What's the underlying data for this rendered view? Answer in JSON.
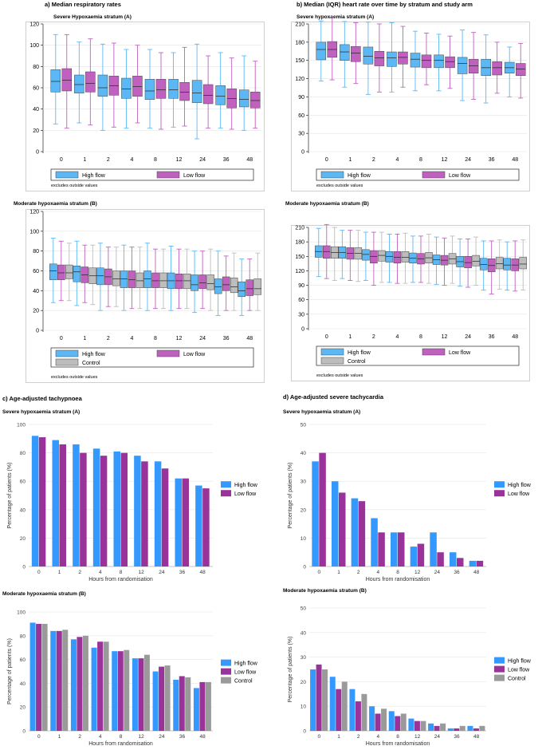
{
  "labels": {
    "a": "a)  Median respiratory rates",
    "b": "b)  Median (IQR) heart rate over time by stratum and study arm",
    "c": "c)  Age-adjusted tachypnoea",
    "d": "d)  Age-adjusted severe tachycardia",
    "severe_a_box": "Severe Hypoxaemia stratum  (A)",
    "severe_b_box": "Severe hypoxaemia stratum (A)",
    "moderate": "Moderate hypoxaemia stratum (B)",
    "severe_bar": "Severe hypoxaemia stratum (A)",
    "excludes": "excludes outside values",
    "ylabel_pct": "Percentage of patients (%)",
    "xlabel_hours": "Hours from randomisation"
  },
  "colors": {
    "high": "#5bb8f5",
    "low": "#c061c0",
    "control": "#bdbdbd",
    "highBar": "#3399ff",
    "lowBar": "#993399",
    "controlBar": "#9a9a9a"
  },
  "chart_data": [
    {
      "id": "a-severe",
      "type": "box",
      "title": "Severe Hypoxaemia stratum  (A)",
      "categories": [
        "0",
        "1",
        "2",
        "4",
        "8",
        "12",
        "24",
        "36",
        "48"
      ],
      "ylim": [
        0,
        120
      ],
      "yticks": [
        0,
        20,
        40,
        60,
        80,
        100,
        120
      ],
      "legend": [
        "High flow",
        "Low flow"
      ],
      "note": "excludes outside values",
      "series": [
        {
          "name": "High flow",
          "stats": [
            [
              26,
              56,
              66,
              77,
              110
            ],
            [
              27,
              55,
              63,
              72,
              103
            ],
            [
              20,
              52,
              60,
              72,
              101
            ],
            [
              22,
              50,
              59,
              69,
              96
            ],
            [
              22,
              49,
              57,
              68,
              96
            ],
            [
              23,
              50,
              58,
              68,
              93
            ],
            [
              12,
              46,
              55,
              67,
              101
            ],
            [
              22,
              44,
              52,
              62,
              93
            ],
            [
              20,
              42,
              49,
              58,
              90
            ]
          ]
        },
        {
          "name": "Low flow",
          "stats": [
            [
              22,
              57,
              67,
              78,
              110
            ],
            [
              25,
              56,
              64,
              75,
              106
            ],
            [
              23,
              53,
              62,
              71,
              102
            ],
            [
              27,
              52,
              61,
              71,
              100
            ],
            [
              21,
              50,
              58,
              68,
              93
            ],
            [
              24,
              48,
              56,
              65,
              98
            ],
            [
              22,
              45,
              53,
              63,
              90
            ],
            [
              21,
              41,
              50,
              59,
              88
            ],
            [
              22,
              41,
              48,
              56,
              85
            ]
          ]
        }
      ]
    },
    {
      "id": "a-moderate",
      "type": "box",
      "title": "Moderate hypoxaemia stratum (B)",
      "categories": [
        "0",
        "1",
        "2",
        "4",
        "8",
        "12",
        "24",
        "36",
        "48"
      ],
      "ylim": [
        0,
        120
      ],
      "yticks": [
        0,
        20,
        40,
        60,
        80,
        100,
        120
      ],
      "legend": [
        "High flow",
        "Low flow",
        "Control"
      ],
      "note": "excludes outside values",
      "series": [
        {
          "name": "High flow",
          "stats": [
            [
              28,
              51,
              60,
              67,
              93
            ],
            [
              25,
              49,
              59,
              65,
              90
            ],
            [
              20,
              46,
              55,
              63,
              88
            ],
            [
              20,
              43,
              52,
              60,
              86
            ],
            [
              20,
              43,
              52,
              60,
              88
            ],
            [
              20,
              42,
              50,
              58,
              85
            ],
            [
              18,
              40,
              46,
              56,
              80
            ],
            [
              15,
              37,
              44,
              52,
              80
            ],
            [
              15,
              34,
              40,
              49,
              72
            ]
          ]
        },
        {
          "name": "Low flow",
          "stats": [
            [
              30,
              51,
              58,
              66,
              90
            ],
            [
              28,
              48,
              56,
              64,
              86
            ],
            [
              24,
              46,
              54,
              62,
              84
            ],
            [
              22,
              43,
              51,
              60,
              84
            ],
            [
              22,
              43,
              50,
              58,
              82
            ],
            [
              22,
              42,
              50,
              57,
              82
            ],
            [
              22,
              42,
              48,
              56,
              80
            ],
            [
              20,
              40,
              46,
              54,
              75
            ],
            [
              20,
              35,
              42,
              51,
              72
            ]
          ]
        },
        {
          "name": "Control",
          "stats": [
            [
              30,
              52,
              58,
              66,
              88
            ],
            [
              26,
              47,
              55,
              63,
              86
            ],
            [
              24,
              45,
              52,
              60,
              84
            ],
            [
              22,
              43,
              50,
              58,
              84
            ],
            [
              22,
              43,
              50,
              58,
              82
            ],
            [
              22,
              42,
              50,
              57,
              82
            ],
            [
              20,
              41,
              47,
              56,
              82
            ],
            [
              20,
              38,
              44,
              53,
              78
            ],
            [
              20,
              36,
              42,
              52,
              78
            ]
          ]
        }
      ]
    },
    {
      "id": "b-severe",
      "type": "box",
      "title": "Severe hypoxaemia stratum (A)",
      "categories": [
        "0",
        "1",
        "2",
        "4",
        "8",
        "12",
        "24",
        "36",
        "48"
      ],
      "ylim": [
        0,
        210
      ],
      "yticks": [
        0,
        30,
        60,
        90,
        120,
        150,
        180,
        210
      ],
      "legend": [
        "High flow",
        "Low flow"
      ],
      "note": "excludes outside values",
      "series": [
        {
          "name": "High flow",
          "stats": [
            [
              116,
              151,
              168,
              180,
              215
            ],
            [
              106,
              150,
              164,
              176,
              214
            ],
            [
              94,
              144,
              157,
              172,
              213
            ],
            [
              98,
              140,
              154,
              164,
              212
            ],
            [
              100,
              139,
              152,
              162,
              198
            ],
            [
              100,
              138,
              150,
              159,
              193
            ],
            [
              84,
              128,
              145,
              155,
              200
            ],
            [
              80,
              125,
              138,
              152,
              192
            ],
            [
              90,
              129,
              138,
              147,
              172
            ]
          ]
        },
        {
          "name": "Low flow",
          "stats": [
            [
              118,
              155,
              168,
              181,
              221
            ],
            [
              112,
              148,
              162,
              173,
              212
            ],
            [
              98,
              141,
              154,
              165,
              210
            ],
            [
              106,
              144,
              155,
              164,
              206
            ],
            [
              110,
              138,
              150,
              159,
              195
            ],
            [
              104,
              138,
              148,
              156,
              190
            ],
            [
              86,
              129,
              141,
              152,
              196
            ],
            [
              96,
              126,
              138,
              148,
              180
            ],
            [
              88,
              125,
              136,
              145,
              178
            ]
          ]
        }
      ]
    },
    {
      "id": "b-moderate",
      "type": "box",
      "title": "Moderate hypoxaemia stratum (B)",
      "categories": [
        "0",
        "1",
        "2",
        "4",
        "8",
        "12",
        "24",
        "36",
        "48"
      ],
      "ylim": [
        0,
        210
      ],
      "yticks": [
        0,
        30,
        60,
        90,
        120,
        150,
        180,
        210
      ],
      "legend": [
        "High flow",
        "Low flow",
        "Control"
      ],
      "note": "excludes outside values",
      "series": [
        {
          "name": "High flow",
          "stats": [
            [
              108,
              148,
              160,
              172,
              208
            ],
            [
              104,
              146,
              158,
              170,
              204
            ],
            [
              100,
              142,
              154,
              164,
              200
            ],
            [
              96,
              138,
              150,
              160,
              196
            ],
            [
              96,
              136,
              146,
              157,
              192
            ],
            [
              92,
              133,
              143,
              153,
              190
            ],
            [
              88,
              128,
              139,
              150,
              186
            ],
            [
              80,
              122,
              133,
              146,
              182
            ],
            [
              80,
              122,
              132,
              146,
              180
            ]
          ]
        },
        {
          "name": "Low flow",
          "stats": [
            [
              104,
              146,
              160,
              172,
              216
            ],
            [
              100,
              144,
              156,
              168,
              204
            ],
            [
              90,
              136,
              150,
              162,
              200
            ],
            [
              94,
              136,
              148,
              160,
              196
            ],
            [
              96,
              134,
              145,
              156,
              192
            ],
            [
              90,
              132,
              142,
              152,
              188
            ],
            [
              86,
              126,
              137,
              150,
              186
            ],
            [
              72,
              118,
              131,
              145,
              182
            ],
            [
              78,
              120,
              132,
              145,
              182
            ]
          ]
        },
        {
          "name": "Control",
          "stats": [
            [
              100,
              146,
              158,
              170,
              210
            ],
            [
              98,
              144,
              156,
              168,
              204
            ],
            [
              96,
              140,
              152,
              162,
              200
            ],
            [
              94,
              138,
              148,
              160,
              198
            ],
            [
              94,
              136,
              147,
              158,
              196
            ],
            [
              94,
              134,
              145,
              156,
              192
            ],
            [
              90,
              130,
              140,
              152,
              190
            ],
            [
              82,
              124,
              135,
              148,
              184
            ],
            [
              80,
              124,
              134,
              148,
              184
            ]
          ]
        }
      ]
    },
    {
      "id": "c-severe",
      "type": "bar",
      "title": "Severe hypoxaemia stratum (A)",
      "categories": [
        "0",
        "1",
        "2",
        "4",
        "8",
        "12",
        "24",
        "36",
        "48"
      ],
      "ylim": [
        0,
        100
      ],
      "yticks": [
        0,
        20,
        40,
        60,
        80,
        100
      ],
      "xlabel": "Hours from randomisation",
      "ylabel": "Percentage of patients (%)",
      "series": [
        {
          "name": "High flow",
          "values": [
            92,
            89,
            86,
            83,
            81,
            78,
            74,
            62,
            57
          ]
        },
        {
          "name": "Low flow",
          "values": [
            91,
            86,
            80,
            78,
            80,
            74,
            69,
            62,
            55
          ]
        }
      ]
    },
    {
      "id": "c-moderate",
      "type": "bar",
      "title": "Moderate hypoxaemia stratum (B)",
      "categories": [
        "0",
        "1",
        "2",
        "4",
        "8",
        "12",
        "24",
        "36",
        "48"
      ],
      "ylim": [
        0,
        100
      ],
      "yticks": [
        0,
        20,
        40,
        60,
        80,
        100
      ],
      "xlabel": "Hours from randomisation",
      "ylabel": "Percentage of patients (%)",
      "series": [
        {
          "name": "High flow",
          "values": [
            91,
            84,
            77,
            70,
            67,
            61,
            50,
            43,
            36
          ]
        },
        {
          "name": "Low flow",
          "values": [
            90,
            84,
            79,
            75,
            67,
            61,
            54,
            46,
            41
          ]
        },
        {
          "name": "Control",
          "values": [
            90,
            85,
            80,
            75,
            68,
            64,
            55,
            45,
            41
          ]
        }
      ]
    },
    {
      "id": "d-severe",
      "type": "bar",
      "title": "Severe hypoxaemia stratum (A)",
      "categories": [
        "0",
        "1",
        "2",
        "4",
        "8",
        "12",
        "24",
        "36",
        "48"
      ],
      "ylim": [
        0,
        50
      ],
      "yticks": [
        0,
        10,
        20,
        30,
        40,
        50
      ],
      "xlabel": "Hours from randomisation",
      "ylabel": "Percentage of patients (%)",
      "series": [
        {
          "name": "High flow",
          "values": [
            37,
            30,
            24,
            17,
            12,
            7,
            12,
            5,
            2
          ]
        },
        {
          "name": "Low flow",
          "values": [
            40,
            26,
            23,
            12,
            12,
            8,
            5,
            3,
            2
          ]
        }
      ]
    },
    {
      "id": "d-moderate",
      "type": "bar",
      "title": "Moderate hypoxaemia stratum (B)",
      "categories": [
        "0",
        "1",
        "2",
        "4",
        "8",
        "12",
        "24",
        "36",
        "48"
      ],
      "ylim": [
        0,
        50
      ],
      "yticks": [
        0,
        10,
        20,
        30,
        40,
        50
      ],
      "xlabel": "Hours from randomisation",
      "ylabel": "Percentage of patients (%)",
      "series": [
        {
          "name": "High flow",
          "values": [
            25,
            22,
            17,
            10,
            8,
            5,
            3,
            1,
            2
          ]
        },
        {
          "name": "Low flow",
          "values": [
            27,
            17,
            12,
            7,
            6,
            4,
            2,
            1,
            1
          ]
        },
        {
          "name": "Control",
          "values": [
            25,
            20,
            15,
            9,
            7,
            4,
            3,
            2,
            2
          ]
        }
      ]
    }
  ]
}
